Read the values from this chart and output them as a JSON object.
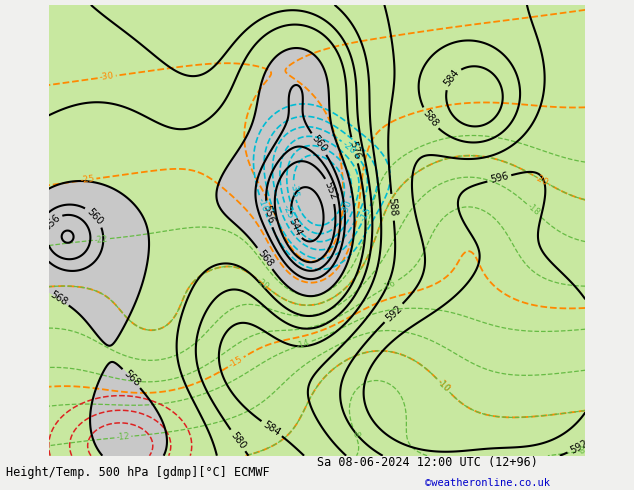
{
  "title_left": "Height/Temp. 500 hPa [gdmp][°C] ECMWF",
  "title_right": "Sa 08-06-2024 12:00 UTC (12+96)",
  "watermark": "©weatheronline.co.uk",
  "fig_width": 6.34,
  "fig_height": 4.9,
  "dpi": 100,
  "bg_green": "#c8e8a0",
  "bg_gray": "#c8c8c8",
  "bg_sea": "#dcdcdc",
  "bg_outer": "#f0f0ee",
  "z500_color": "#000000",
  "temp_orange": "#ff8800",
  "temp_green": "#66bb44",
  "slp_cyan": "#00bcd4",
  "slp_red": "#dd2222",
  "title_size": 8.5,
  "label_size": 7.0,
  "lon0": -30,
  "lon1": 45,
  "lat0": 30,
  "lat1": 75
}
